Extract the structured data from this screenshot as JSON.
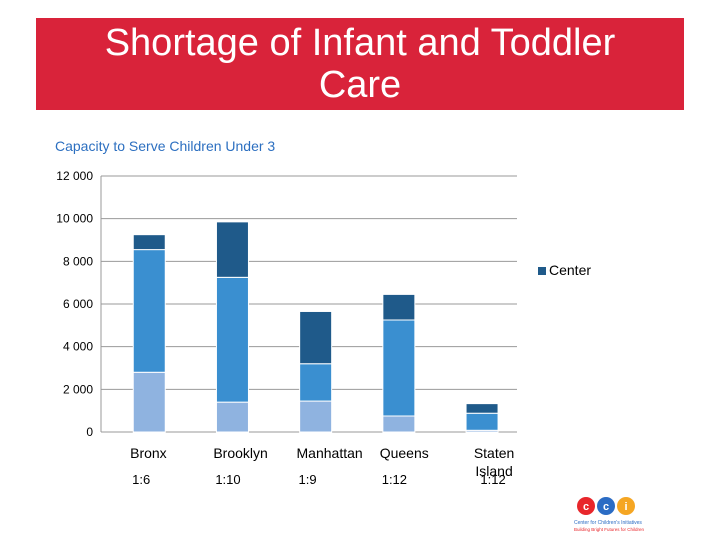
{
  "title": "Shortage of Infant and Toddler Care",
  "chart_data": {
    "type": "bar",
    "stacked": true,
    "title": "Capacity to Serve Children Under 3",
    "categories": [
      "Bronx",
      "Brooklyn",
      "Manhattan",
      "Queens",
      "Staten Island"
    ],
    "ratios": [
      "1:6",
      "1:10",
      "1:9",
      "1:12",
      "1:12"
    ],
    "series": [
      {
        "name": "",
        "color": "#8fb3e0",
        "values": [
          2800,
          1400,
          1450,
          750,
          80
        ]
      },
      {
        "name": "",
        "color": "#3a8fd0",
        "values": [
          5750,
          5850,
          1750,
          4500,
          800
        ]
      },
      {
        "name": "Center",
        "color": "#1f5a8a",
        "values": [
          700,
          2600,
          2450,
          1200,
          450
        ]
      }
    ],
    "ylim": [
      0,
      12000
    ],
    "yticks": [
      "0",
      "2 000",
      "4 000",
      "6 000",
      "8 000",
      "10 000",
      "12 000"
    ],
    "ytick_values": [
      0,
      2000,
      4000,
      6000,
      8000,
      10000,
      12000
    ],
    "legend": {
      "position": "right",
      "entries": [
        "Center"
      ]
    }
  },
  "logo": {
    "letters": "cci",
    "line1": "Center for Children's Initiatives",
    "line2": "Building Bright Futures for Children"
  }
}
